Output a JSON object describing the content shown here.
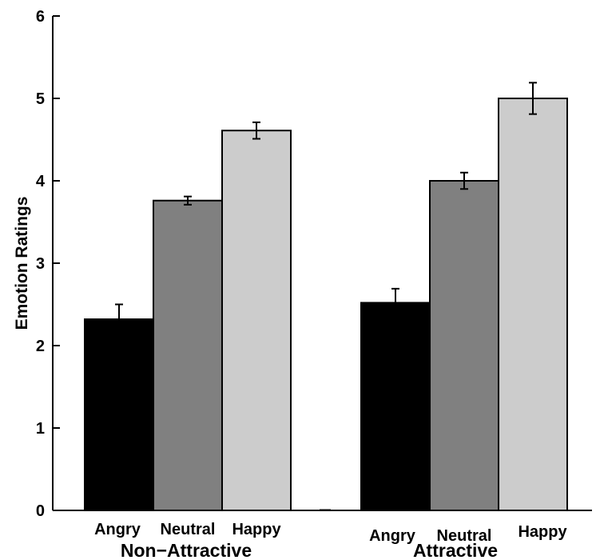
{
  "chart_data": {
    "type": "bar",
    "ylabel": "Emotion Ratings",
    "ylim": [
      0,
      6
    ],
    "yticks": [
      "0",
      "1",
      "2",
      "3",
      "4",
      "5",
      "6"
    ],
    "groups": [
      {
        "name": "Non−Attractive",
        "bars": [
          {
            "label": "Angry",
            "value": 2.32,
            "error": 0.18,
            "color": "#000000"
          },
          {
            "label": "Neutral",
            "value": 3.76,
            "error": 0.05,
            "color": "#808080"
          },
          {
            "label": "Happy",
            "value": 4.61,
            "error": 0.1,
            "color": "#cccccc"
          }
        ]
      },
      {
        "name": "Attractive",
        "bars": [
          {
            "label": "Angry",
            "value": 2.52,
            "error": 0.17,
            "color": "#000000"
          },
          {
            "label": "Neutral",
            "value": 4.0,
            "error": 0.1,
            "color": "#808080"
          },
          {
            "label": "Happy",
            "value": 5.0,
            "error": 0.19,
            "color": "#cccccc"
          }
        ]
      }
    ]
  }
}
